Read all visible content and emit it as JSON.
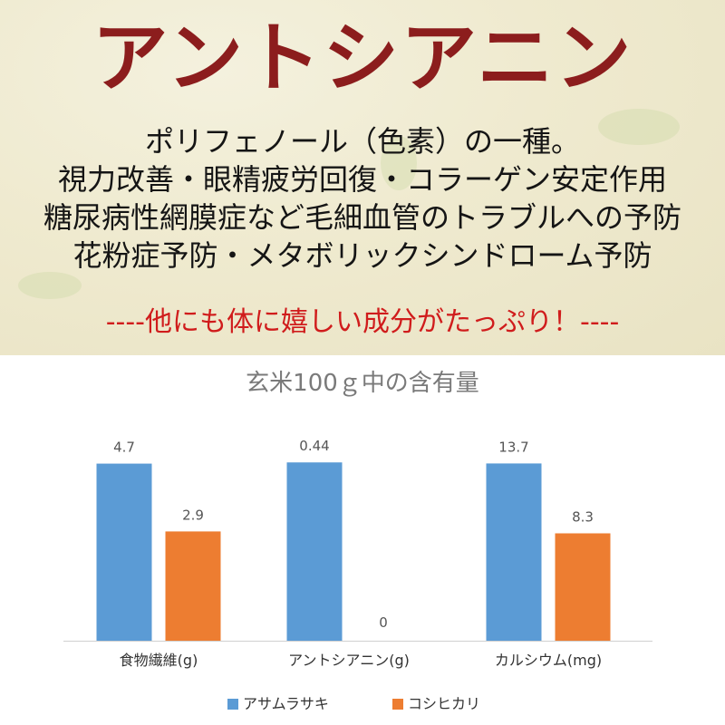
{
  "header": {
    "title": "アントシアニン",
    "lines": [
      "ポリフェノール（色素）の一種。",
      "視力改善・眼精疲労回復・コラーゲン安定作用",
      "糖尿病性網膜症など毛細血管のトラブルへの予防",
      "花粉症予防・メタボリックシンドローム予防"
    ],
    "tagline": "----他にも体に嬉しい成分がたっぷり！----"
  },
  "colors": {
    "title": "#8c1d1d",
    "tagline": "#d01c1c",
    "series_1": "#5b9bd5",
    "series_2": "#ed7d31"
  },
  "chart_data": {
    "type": "bar",
    "title": "玄米100ｇ中の含有量",
    "categories": [
      "食物繊維(g)",
      "アントシアニン(g)",
      "カルシウム(mg)"
    ],
    "series": [
      {
        "name": "アサムラサキ",
        "values": [
          4.7,
          0.44,
          13.7
        ],
        "labels": [
          "4.7",
          "0.44",
          "13.7"
        ]
      },
      {
        "name": "コシヒカリ",
        "values": [
          2.9,
          0,
          8.3
        ],
        "labels": [
          "2.9",
          "0",
          "8.3"
        ]
      }
    ],
    "ylim_per_category": [
      [
        0,
        5.7
      ],
      [
        0,
        0.53
      ],
      [
        0,
        16.6
      ]
    ],
    "grid": false,
    "legend_position": "bottom",
    "xlabel": "",
    "ylabel": ""
  }
}
